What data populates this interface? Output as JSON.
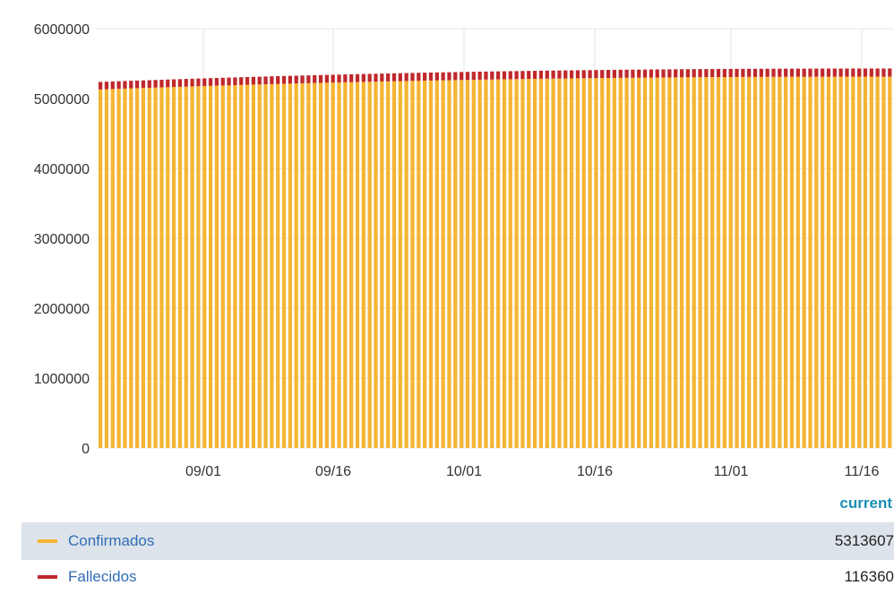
{
  "chart_data": {
    "type": "bar",
    "stacked": true,
    "ylim": [
      0,
      6000000
    ],
    "yticks": [
      "0",
      "1000000",
      "2000000",
      "3000000",
      "4000000",
      "5000000",
      "6000000"
    ],
    "xticks": [
      "09/01",
      "09/16",
      "10/01",
      "10/16",
      "11/01",
      "11/16"
    ],
    "series": [
      {
        "name": "Confirmados",
        "start": 5130000,
        "end": 5313607
      },
      {
        "name": "Fallecidos",
        "start": 108000,
        "end": 116360
      }
    ],
    "grid": true
  },
  "legend": {
    "header": "current",
    "rows": [
      {
        "name": "Confirmados",
        "value": "5313607"
      },
      {
        "name": "Fallecidos",
        "value": "116360"
      }
    ]
  },
  "colors": {
    "confirmados": "#f5b533",
    "fallecidos": "#c0282d",
    "grid": "#e6e6e6",
    "accent": "#1a8fb3"
  }
}
